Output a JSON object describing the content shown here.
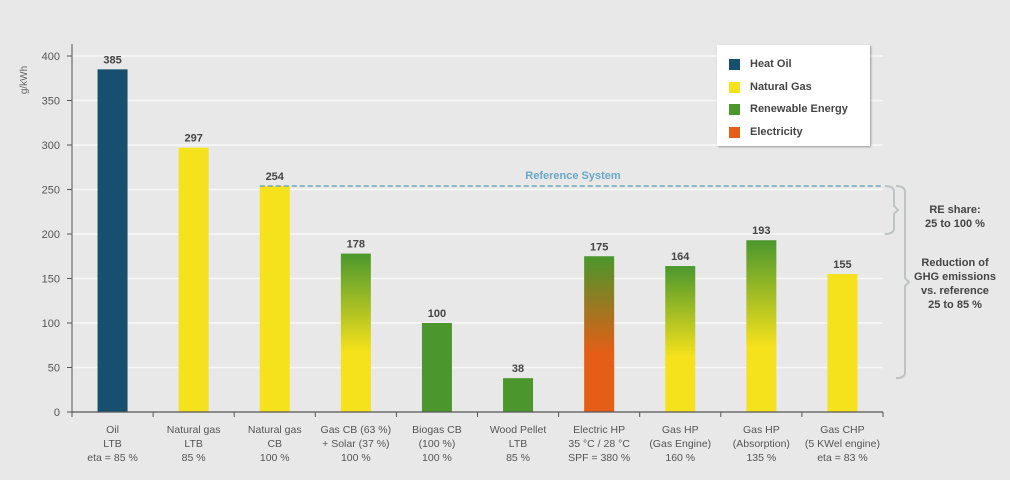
{
  "chart_data": {
    "type": "bar",
    "title": "",
    "xlabel": "",
    "ylabel": "g/kWh",
    "ylim": [
      0,
      400
    ],
    "yticks": [
      0,
      50,
      100,
      150,
      200,
      250,
      300,
      350,
      400
    ],
    "grid": true,
    "categories": [
      [
        "Oil",
        "LTB",
        "eta = 85 %"
      ],
      [
        "Natural gas",
        "LTB",
        "85 %"
      ],
      [
        "Natural gas",
        "CB",
        "100 %"
      ],
      [
        "Gas CB (63 %)",
        "+ Solar (37 %)",
        "100 %"
      ],
      [
        "Biogas CB",
        "(100 %)",
        "100 %"
      ],
      [
        "Wood Pellet",
        "LTB",
        "85 %"
      ],
      [
        "Electric HP",
        "35 °C / 28 °C",
        "SPF = 380 %"
      ],
      [
        "Gas HP",
        "(Gas Engine)",
        "160 %"
      ],
      [
        "Gas HP",
        "(Absorption)",
        "135 %"
      ],
      [
        "Gas CHP",
        "(5 KWel engine)",
        "eta = 83 %"
      ]
    ],
    "values": [
      385,
      297,
      254,
      178,
      100,
      38,
      175,
      164,
      193,
      155
    ],
    "data_labels": [
      "385",
      "297",
      "254",
      "178",
      "100",
      "38",
      "175",
      "164",
      "193",
      "155"
    ],
    "bar_fills": [
      {
        "type": "solid",
        "colors": [
          "#16506e"
        ]
      },
      {
        "type": "solid",
        "colors": [
          "#f5e11c"
        ]
      },
      {
        "type": "solid",
        "colors": [
          "#f5e11c"
        ]
      },
      {
        "type": "gradient",
        "colors": [
          "#4b972d",
          "#f5e11c"
        ]
      },
      {
        "type": "solid",
        "colors": [
          "#4b972d"
        ]
      },
      {
        "type": "solid",
        "colors": [
          "#4b972d"
        ]
      },
      {
        "type": "gradient",
        "colors": [
          "#4b972d",
          "#e45e17"
        ]
      },
      {
        "type": "gradient",
        "colors": [
          "#4b972d",
          "#f5e11c"
        ]
      },
      {
        "type": "gradient",
        "colors": [
          "#4b972d",
          "#f5e11c"
        ]
      },
      {
        "type": "solid",
        "colors": [
          "#f5e11c"
        ]
      }
    ],
    "legend": {
      "placement": "top-right",
      "entries": [
        {
          "label": "Heat Oil",
          "color": "#16506e"
        },
        {
          "label": "Natural Gas",
          "color": "#f5e11c"
        },
        {
          "label": "Renewable Energy",
          "color": "#4b972d"
        },
        {
          "label": "Electricity",
          "color": "#e45e17"
        }
      ]
    },
    "reference_line": {
      "value": 254,
      "label": "Reference System",
      "color": "#6aa7c7",
      "style": "dashed"
    },
    "annotations": [
      {
        "text": [
          "RE share:",
          "25 to 100 %"
        ],
        "range": [
          200,
          254
        ]
      },
      {
        "text": [
          "Reduction of",
          "GHG emissions",
          "vs. reference",
          "25 to 85 %"
        ],
        "range": [
          38,
          254
        ]
      }
    ]
  }
}
